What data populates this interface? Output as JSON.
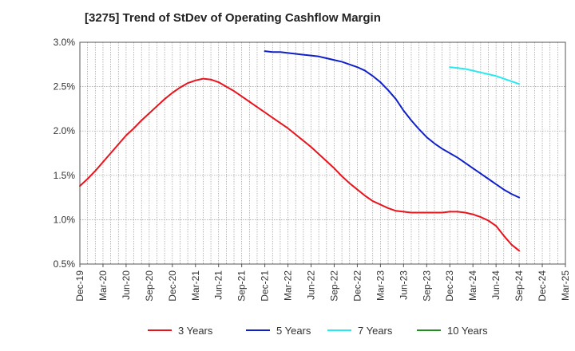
{
  "chart_data": {
    "type": "line",
    "title": "[3275]  Trend of StDev of Operating Cashflow Margin",
    "xlabel": "",
    "ylabel": "",
    "ylim": [
      0.5,
      3.0
    ],
    "y_ticks": [
      "0.5%",
      "1.0%",
      "1.5%",
      "2.0%",
      "2.5%",
      "3.0%"
    ],
    "y_tick_values": [
      0.5,
      1.0,
      1.5,
      2.0,
      2.5,
      3.0
    ],
    "x_ticks": [
      "Dec-19",
      "Mar-20",
      "Jun-20",
      "Sep-20",
      "Dec-20",
      "Mar-21",
      "Jun-21",
      "Sep-21",
      "Dec-21",
      "Mar-22",
      "Jun-22",
      "Sep-22",
      "Dec-22",
      "Mar-23",
      "Jun-23",
      "Sep-23",
      "Dec-23",
      "Mar-24",
      "Jun-24",
      "Sep-24",
      "Dec-24",
      "Mar-25"
    ],
    "grid": true,
    "legend_position": "bottom",
    "series": [
      {
        "name": "3 Years",
        "color": "#e8141c",
        "x": [
          "Dec-19",
          "Jan-20",
          "Feb-20",
          "Mar-20",
          "Apr-20",
          "May-20",
          "Jun-20",
          "Jul-20",
          "Aug-20",
          "Sep-20",
          "Oct-20",
          "Nov-20",
          "Dec-20",
          "Jan-21",
          "Feb-21",
          "Mar-21",
          "Apr-21",
          "May-21",
          "Jun-21",
          "Jul-21",
          "Aug-21",
          "Sep-21",
          "Oct-21",
          "Nov-21",
          "Dec-21",
          "Jan-22",
          "Feb-22",
          "Mar-22",
          "Apr-22",
          "May-22",
          "Jun-22",
          "Jul-22",
          "Aug-22",
          "Sep-22",
          "Oct-22",
          "Nov-22",
          "Dec-22",
          "Jan-23",
          "Feb-23",
          "Mar-23",
          "Apr-23",
          "May-23",
          "Jun-23",
          "Jul-23",
          "Aug-23",
          "Sep-23",
          "Oct-23",
          "Nov-23",
          "Dec-23",
          "Jan-24",
          "Feb-24",
          "Mar-24",
          "Apr-24",
          "May-24",
          "Jun-24",
          "Jul-24",
          "Aug-24",
          "Sep-24"
        ],
        "values": [
          1.38,
          1.46,
          1.55,
          1.65,
          1.75,
          1.85,
          1.95,
          2.03,
          2.12,
          2.2,
          2.28,
          2.36,
          2.43,
          2.49,
          2.54,
          2.57,
          2.59,
          2.58,
          2.55,
          2.5,
          2.45,
          2.39,
          2.33,
          2.27,
          2.21,
          2.15,
          2.09,
          2.03,
          1.96,
          1.89,
          1.82,
          1.74,
          1.66,
          1.58,
          1.49,
          1.41,
          1.34,
          1.27,
          1.21,
          1.17,
          1.13,
          1.1,
          1.09,
          1.08,
          1.08,
          1.08,
          1.08,
          1.08,
          1.09,
          1.09,
          1.08,
          1.06,
          1.03,
          0.99,
          0.93,
          0.82,
          0.72,
          0.65
        ]
      },
      {
        "name": "5 Years",
        "color": "#1020c8",
        "x": [
          "Dec-21",
          "Jan-22",
          "Feb-22",
          "Mar-22",
          "Apr-22",
          "May-22",
          "Jun-22",
          "Jul-22",
          "Aug-22",
          "Sep-22",
          "Oct-22",
          "Nov-22",
          "Dec-22",
          "Jan-23",
          "Feb-23",
          "Mar-23",
          "Apr-23",
          "May-23",
          "Jun-23",
          "Jul-23",
          "Aug-23",
          "Sep-23",
          "Oct-23",
          "Nov-23",
          "Dec-23",
          "Jan-24",
          "Feb-24",
          "Mar-24",
          "Apr-24",
          "May-24",
          "Jun-24",
          "Jul-24",
          "Aug-24",
          "Sep-24"
        ],
        "values": [
          2.9,
          2.89,
          2.89,
          2.88,
          2.87,
          2.86,
          2.85,
          2.84,
          2.82,
          2.8,
          2.78,
          2.75,
          2.72,
          2.68,
          2.62,
          2.55,
          2.46,
          2.36,
          2.23,
          2.12,
          2.02,
          1.93,
          1.86,
          1.8,
          1.75,
          1.7,
          1.64,
          1.58,
          1.52,
          1.46,
          1.4,
          1.34,
          1.29,
          1.25
        ]
      },
      {
        "name": "7 Years",
        "color": "#28e8f0",
        "x": [
          "Dec-23",
          "Jan-24",
          "Feb-24",
          "Mar-24",
          "Apr-24",
          "May-24",
          "Jun-24",
          "Jul-24",
          "Aug-24",
          "Sep-24"
        ],
        "values": [
          2.72,
          2.71,
          2.7,
          2.68,
          2.66,
          2.64,
          2.62,
          2.59,
          2.56,
          2.53
        ]
      },
      {
        "name": "10 Years",
        "color": "#209020",
        "x": [],
        "values": []
      }
    ]
  }
}
